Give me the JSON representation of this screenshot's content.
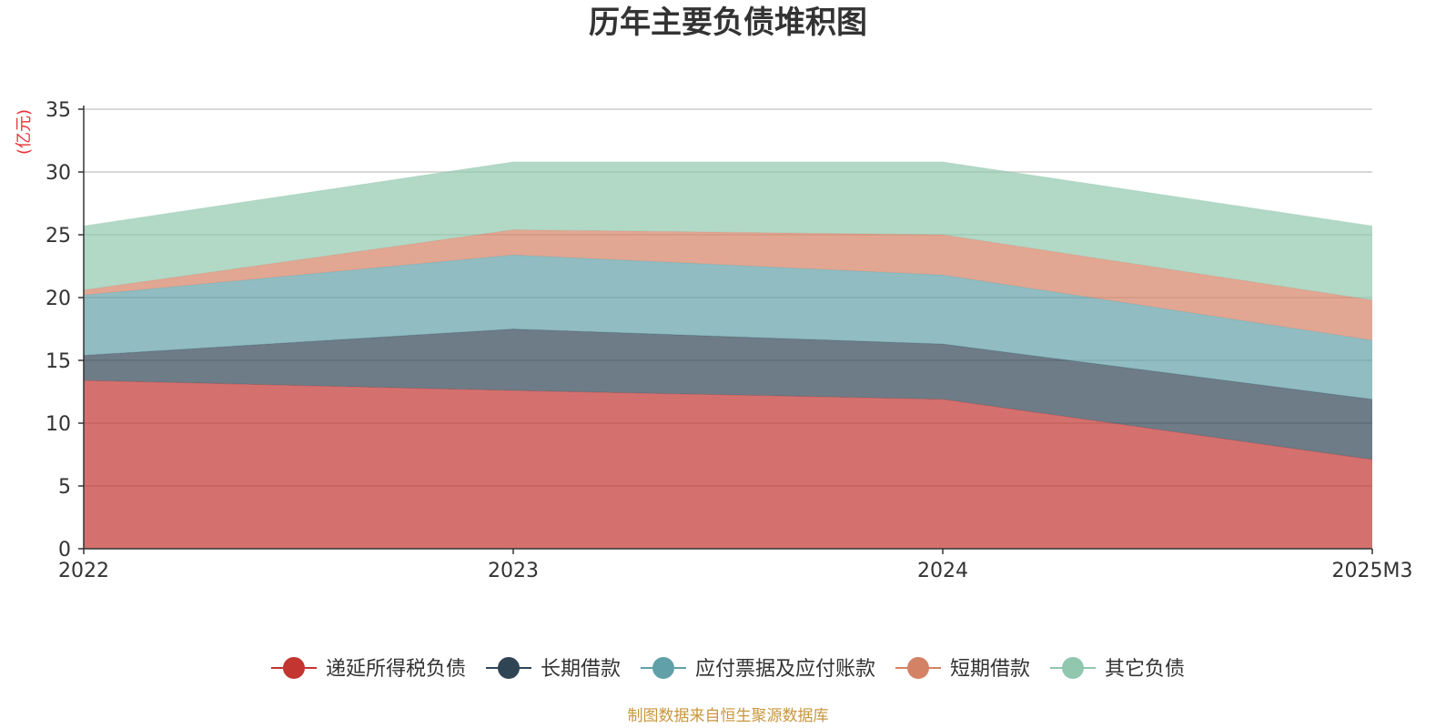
{
  "chart_data": {
    "type": "area",
    "stacked": true,
    "title": "历年主要负债堆积图",
    "y_unit_label": "(亿元)",
    "categories": [
      "2022",
      "2023",
      "2024",
      "2025M3"
    ],
    "ylim": [
      0,
      35
    ],
    "yticks": [
      0,
      5,
      10,
      15,
      20,
      25,
      30,
      35
    ],
    "grid": true,
    "legend_position": "bottom",
    "series": [
      {
        "name": "递延所得税负债",
        "color": "#c23531",
        "values": [
          13.4,
          12.6,
          11.9,
          7.1
        ]
      },
      {
        "name": "长期借款",
        "color": "#2f4554",
        "values": [
          2.0,
          4.9,
          4.4,
          4.8
        ]
      },
      {
        "name": "应付票据及应付账款",
        "color": "#61a0a8",
        "values": [
          4.8,
          5.9,
          5.5,
          4.7
        ]
      },
      {
        "name": "短期借款",
        "color": "#d48265",
        "values": [
          0.4,
          2.0,
          3.2,
          3.2
        ]
      },
      {
        "name": "其它负债",
        "color": "#91c7ae",
        "values": [
          5.1,
          5.4,
          5.8,
          5.9
        ]
      }
    ],
    "source_note": "制图数据来自恒生聚源数据库"
  }
}
